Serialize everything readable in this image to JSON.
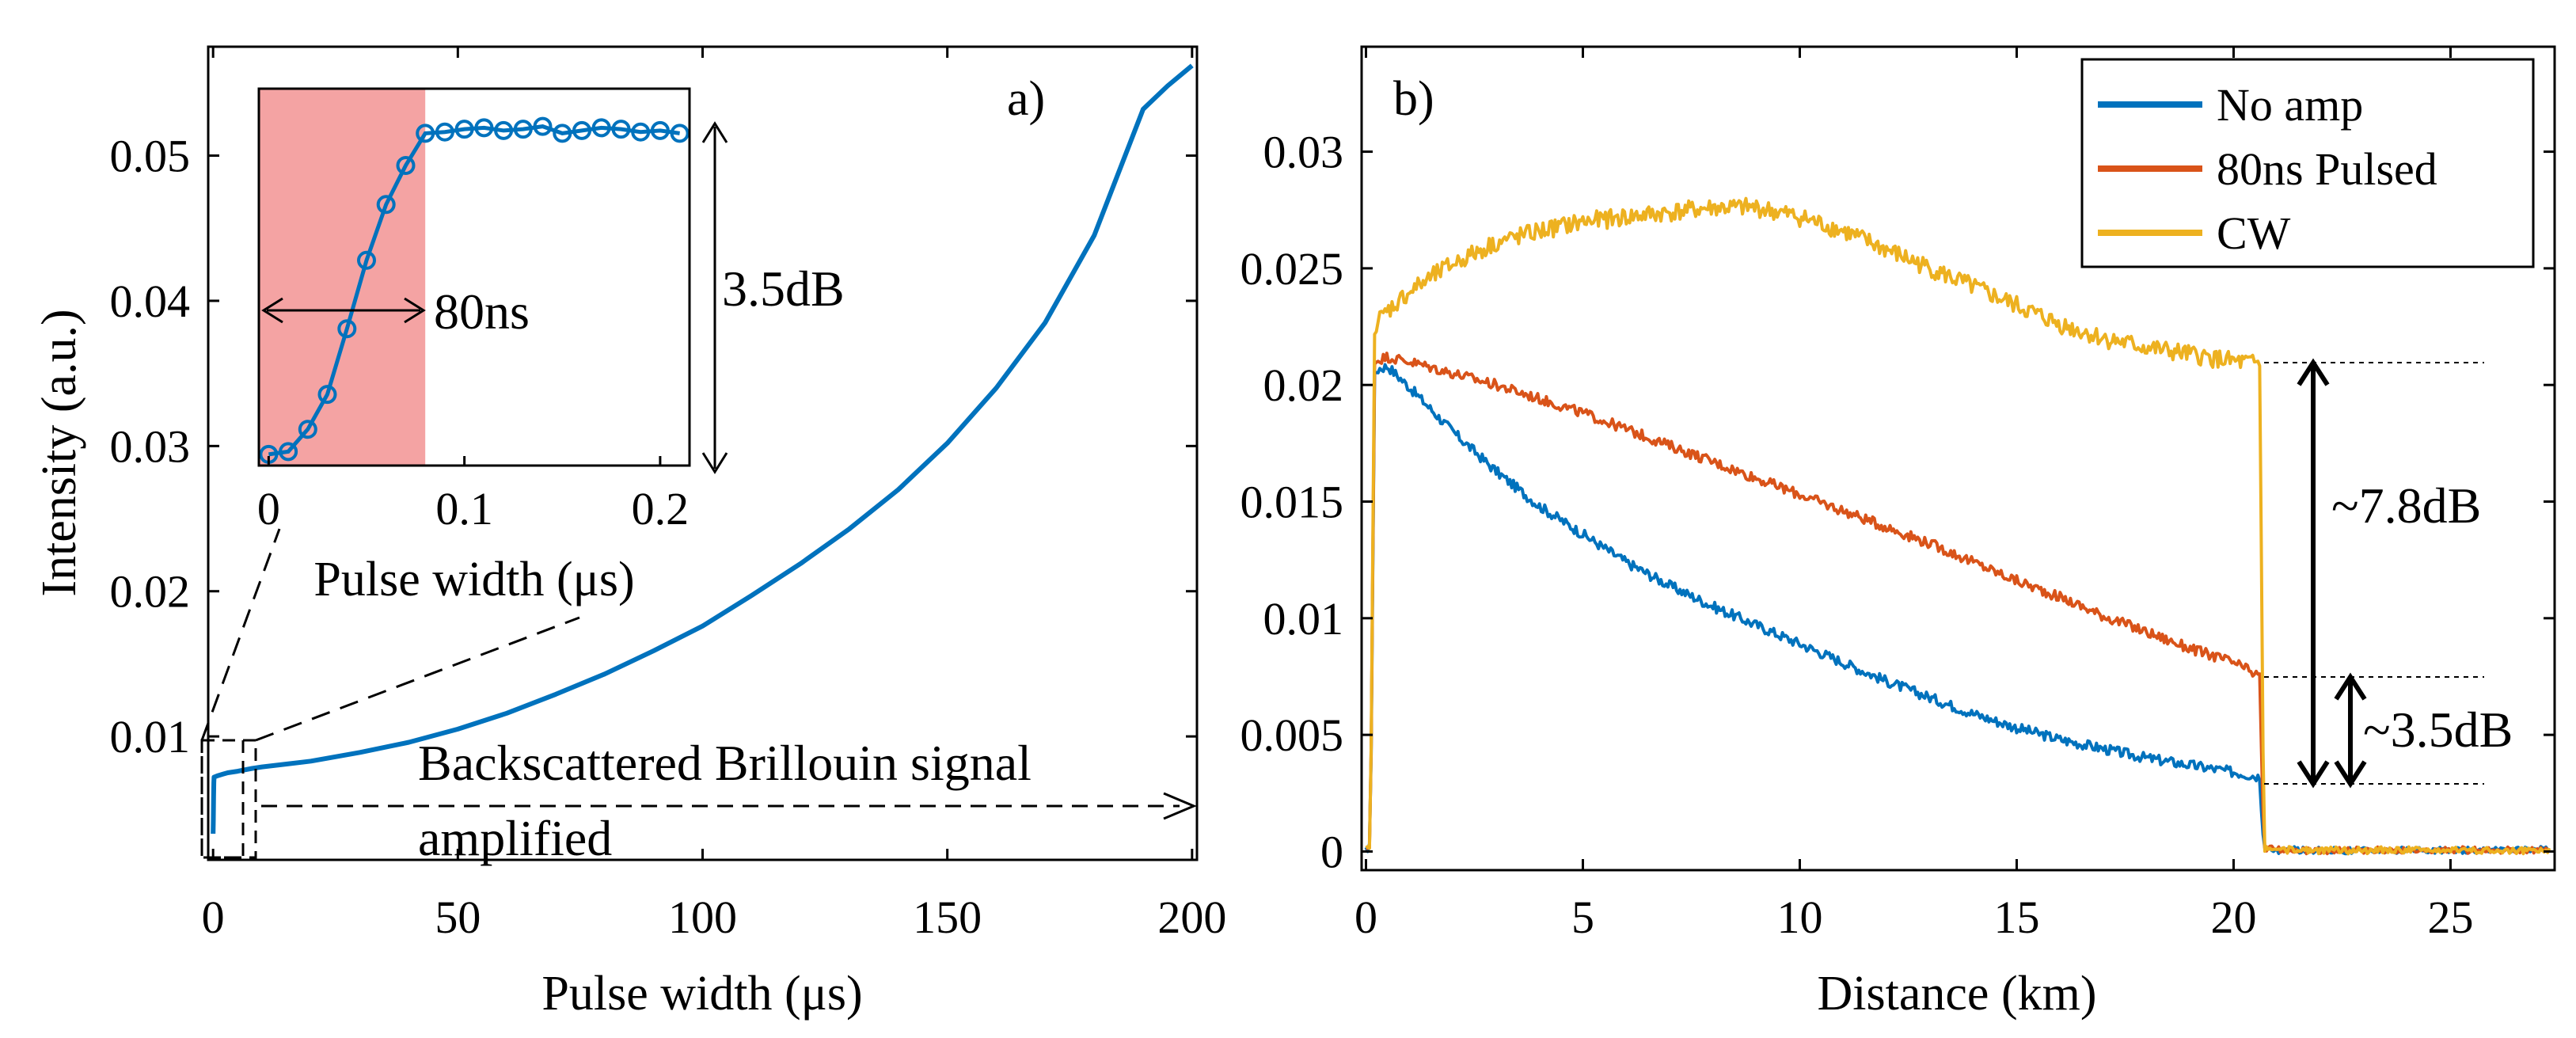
{
  "colors": {
    "no_amp": "#0072BD",
    "pulsed": "#D95319",
    "cw": "#EDB120",
    "shade": "#F4A3A3"
  },
  "chart_data": [
    {
      "id": "a",
      "type": "line",
      "panel_label": "a)",
      "xlabel": "Pulse width (μs)",
      "ylabel": "Intensity (a.u.)",
      "xlim": [
        -1,
        201
      ],
      "ylim": [
        0.0015,
        0.0575
      ],
      "xticks": [
        0,
        50,
        100,
        150,
        200
      ],
      "xtick_labels": [
        "0",
        "50",
        "100",
        "150",
        "200"
      ],
      "yticks": [
        0.01,
        0.02,
        0.03,
        0.04,
        0.05
      ],
      "ytick_labels": [
        "0.01",
        "0.02",
        "0.03",
        "0.04",
        "0.05"
      ],
      "grid": false,
      "series": [
        {
          "x": [
            0,
            0.05,
            0.1,
            0.15,
            0.2,
            1,
            2,
            3,
            5,
            8,
            10,
            15,
            20,
            25,
            30,
            40,
            50,
            60,
            70,
            80,
            90,
            100,
            110,
            120,
            130,
            140,
            150,
            160,
            170,
            180,
            190,
            195,
            200
          ],
          "y": [
            0.0033,
            0.0043,
            0.0058,
            0.0068,
            0.0072,
            0.0073,
            0.0074,
            0.0075,
            0.0076,
            0.0078,
            0.0079,
            0.0081,
            0.0083,
            0.0086,
            0.0089,
            0.0096,
            0.0105,
            0.0116,
            0.0129,
            0.0143,
            0.0159,
            0.0176,
            0.0197,
            0.0219,
            0.0243,
            0.027,
            0.0302,
            0.034,
            0.0385,
            0.0445,
            0.0532,
            0.0548,
            0.0562
          ]
        }
      ],
      "annotations": [
        "Backscattered Brillouin signal",
        "amplified"
      ]
    },
    {
      "id": "a-inset",
      "type": "line",
      "xlabel": "Pulse width (μs)",
      "xlim": [
        -0.005,
        0.215
      ],
      "ylim": [
        0.0292,
        0.0562
      ],
      "xticks": [
        0,
        0.1,
        0.2
      ],
      "xtick_labels": [
        "0",
        "0.1",
        "0.2"
      ],
      "shaded_region_x": [
        -0.005,
        0.08
      ],
      "series": [
        {
          "x": [
            0,
            0.01,
            0.02,
            0.03,
            0.04,
            0.05,
            0.06,
            0.07,
            0.08,
            0.09,
            0.1,
            0.11,
            0.12,
            0.13,
            0.14,
            0.15,
            0.16,
            0.17,
            0.18,
            0.19,
            0.2,
            0.21
          ],
          "y": [
            0.03,
            0.0302,
            0.0318,
            0.0343,
            0.039,
            0.0439,
            0.0479,
            0.0507,
            0.053,
            0.0531,
            0.0533,
            0.0534,
            0.0532,
            0.0533,
            0.0535,
            0.053,
            0.0532,
            0.0534,
            0.0533,
            0.0531,
            0.0532,
            0.053
          ]
        }
      ],
      "annotations": [
        "80ns",
        "3.5dB"
      ]
    },
    {
      "id": "b",
      "type": "line",
      "panel_label": "b)",
      "xlabel": "Distance (km)",
      "xlim": [
        -0.1,
        27.4
      ],
      "ylim": [
        -0.0008,
        0.0345
      ],
      "xticks": [
        0,
        5,
        10,
        15,
        20,
        25
      ],
      "xtick_labels": [
        "0",
        "5",
        "10",
        "15",
        "20",
        "25"
      ],
      "yticks": [
        0,
        0.005,
        0.01,
        0.015,
        0.02,
        0.025,
        0.03
      ],
      "ytick_labels": [
        "0",
        "0.005",
        "0.01",
        "0.015",
        "0.02",
        "0.025",
        "0.03"
      ],
      "grid": false,
      "legend_position": "top-right",
      "series": [
        {
          "name": "No amp",
          "x": [
            0,
            0.1,
            0.2,
            0.3,
            0.5,
            1,
            2,
            3,
            4,
            5,
            6,
            7,
            8,
            9,
            10,
            11,
            12,
            13,
            14,
            15,
            16,
            17,
            18,
            19,
            20,
            20.6,
            20.7,
            21,
            22,
            24,
            26,
            27.3
          ],
          "y": [
            0,
            0.0002,
            0.0205,
            0.0207,
            0.0208,
            0.0199,
            0.018,
            0.0163,
            0.0148,
            0.0136,
            0.0124,
            0.0114,
            0.0105,
            0.0097,
            0.0089,
            0.0081,
            0.0073,
            0.0066,
            0.0059,
            0.0053,
            0.0048,
            0.0044,
            0.004,
            0.0037,
            0.0034,
            0.0032,
            0.0001,
            0,
            0,
            0,
            0,
            0
          ]
        },
        {
          "name": "80ns Pulsed",
          "x": [
            0,
            0.1,
            0.2,
            0.3,
            0.5,
            1,
            2,
            3,
            4,
            5,
            6,
            7,
            8,
            9,
            10,
            11,
            12,
            13,
            14,
            15,
            16,
            17,
            18,
            19,
            20,
            20.6,
            20.7,
            21,
            22,
            24,
            26,
            27.3
          ],
          "y": [
            0,
            0.0002,
            0.021,
            0.0211,
            0.0212,
            0.021,
            0.0205,
            0.02,
            0.0194,
            0.0188,
            0.0181,
            0.0174,
            0.0167,
            0.016,
            0.0153,
            0.0146,
            0.0139,
            0.0132,
            0.0124,
            0.0116,
            0.0109,
            0.0101,
            0.0094,
            0.0087,
            0.0081,
            0.0075,
            0.0001,
            0,
            0,
            0,
            0,
            0
          ]
        },
        {
          "name": "CW",
          "x": [
            0,
            0.1,
            0.2,
            0.3,
            0.5,
            1,
            2,
            3,
            4,
            5,
            6,
            7,
            8,
            9,
            10,
            11,
            12,
            13,
            14,
            15,
            16,
            17,
            18,
            19,
            20,
            20.6,
            20.7,
            21,
            22,
            24,
            26,
            27.3
          ],
          "y": [
            0,
            0.0002,
            0.0222,
            0.0228,
            0.0232,
            0.024,
            0.0252,
            0.0261,
            0.0266,
            0.027,
            0.0272,
            0.0274,
            0.0276,
            0.0276,
            0.0272,
            0.0266,
            0.0258,
            0.025,
            0.0242,
            0.0234,
            0.0226,
            0.022,
            0.0216,
            0.0213,
            0.021,
            0.0209,
            0.0001,
            0,
            0,
            0,
            0,
            0
          ]
        }
      ],
      "annotations": [
        "~7.8dB",
        "~3.5dB"
      ]
    }
  ]
}
